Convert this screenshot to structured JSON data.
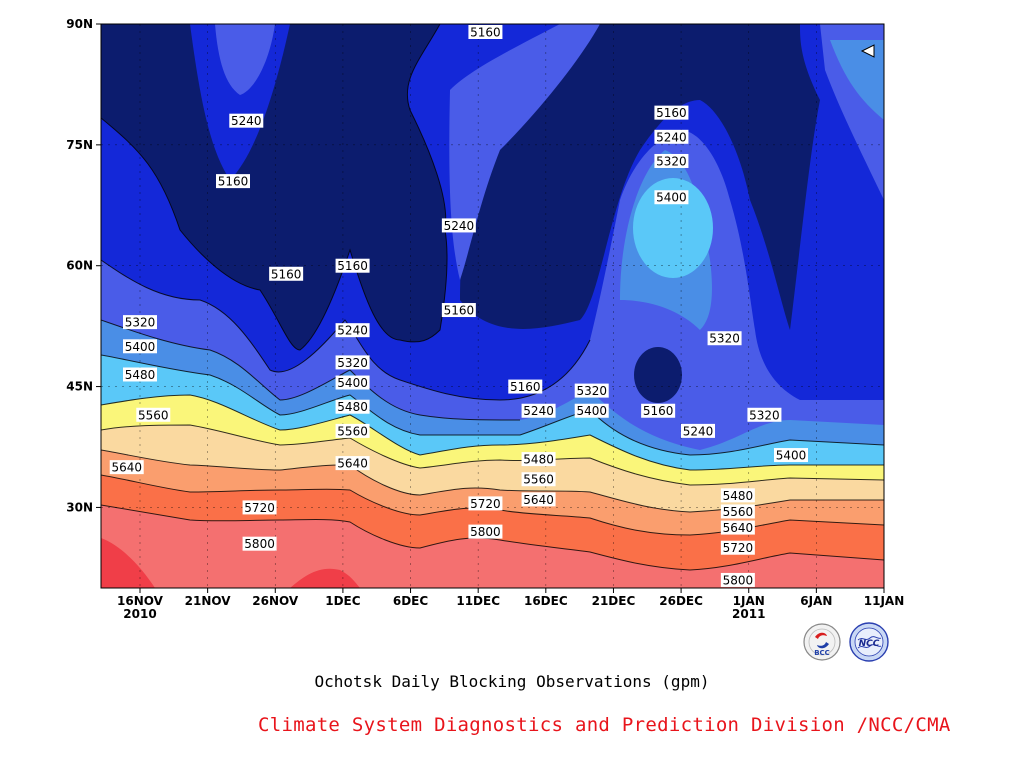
{
  "chart_data": {
    "type": "contour",
    "title": "Ochotsk Daily Blocking Observations (gpm)",
    "x_tick_labels": [
      "16NOV",
      "21NOV",
      "26NOV",
      "1DEC",
      "6DEC",
      "11DEC",
      "16DEC",
      "21DEC",
      "26DEC",
      "1JAN",
      "6JAN",
      "11JAN"
    ],
    "x_year_labels": [
      {
        "at": "16NOV",
        "text": "2010"
      },
      {
        "at": "1JAN",
        "text": "2011"
      }
    ],
    "y_tick_labels": [
      "30N",
      "45N",
      "60N",
      "75N",
      "90N"
    ],
    "ylim": [
      20,
      90
    ],
    "grid": true,
    "contour_levels": [
      5160,
      5240,
      5320,
      5400,
      5480,
      5560,
      5640,
      5720,
      5800
    ],
    "fill_colors": [
      "#0c1c6e",
      "#1428d8",
      "#4a5ce8",
      "#4a8ee6",
      "#5ac8f8",
      "#faf67a",
      "#fad9a0",
      "#fa9e6e",
      "#fa7048",
      "#f47070",
      "#f03e48"
    ],
    "contour_labels": [
      {
        "x": "24NOV",
        "y": 78,
        "text": "5240"
      },
      {
        "x": "23NOV",
        "y": 70.5,
        "text": "5160"
      },
      {
        "x": "27NOV",
        "y": 59,
        "text": "5160"
      },
      {
        "x": "2DEC",
        "y": 60,
        "text": "5160"
      },
      {
        "x": "2DEC",
        "y": 52,
        "text": "5240"
      },
      {
        "x": "2DEC",
        "y": 48,
        "text": "5320"
      },
      {
        "x": "2DEC",
        "y": 45.5,
        "text": "5400"
      },
      {
        "x": "2DEC",
        "y": 42.5,
        "text": "5480"
      },
      {
        "x": "2DEC",
        "y": 39.5,
        "text": "5560"
      },
      {
        "x": "2DEC",
        "y": 35.5,
        "text": "5640"
      },
      {
        "x": "12DEC",
        "y": 5160.0,
        "text": "5160"
      },
      {
        "x": "10DEC",
        "y": 65,
        "text": "5240"
      },
      {
        "x": "10DEC",
        "y": 54.5,
        "text": "5160"
      },
      {
        "x": "16NOV",
        "y": 53,
        "text": "5320"
      },
      {
        "x": "16NOV",
        "y": 50,
        "text": "5400"
      },
      {
        "x": "16NOV",
        "y": 46.5,
        "text": "5480"
      },
      {
        "x": "17NOV",
        "y": 41.5,
        "text": "5560"
      },
      {
        "x": "15NOV",
        "y": 35,
        "text": "5640"
      },
      {
        "x": "25NOV",
        "y": 30,
        "text": "5720"
      },
      {
        "x": "25NOV",
        "y": 25.5,
        "text": "5800"
      },
      {
        "x": "15DEC",
        "y": 45,
        "text": "5160"
      },
      {
        "x": "16DEC",
        "y": 42,
        "text": "5240"
      },
      {
        "x": "16DEC",
        "y": 36,
        "text": "5480"
      },
      {
        "x": "16DEC",
        "y": 33.5,
        "text": "5560"
      },
      {
        "x": "16DEC",
        "y": 31,
        "text": "5640"
      },
      {
        "x": "12DEC",
        "y": 30.5,
        "text": "5720"
      },
      {
        "x": "12DEC",
        "y": 27,
        "text": "5800"
      },
      {
        "x": "20DEC",
        "y": 44.5,
        "text": "5320"
      },
      {
        "x": "20DEC",
        "y": 42,
        "text": "5400"
      },
      {
        "x": "26DEC",
        "y": 79,
        "text": "5160"
      },
      {
        "x": "26DEC",
        "y": 76,
        "text": "5240"
      },
      {
        "x": "26DEC",
        "y": 73,
        "text": "5320"
      },
      {
        "x": "26DEC",
        "y": 68.5,
        "text": "5400"
      },
      {
        "x": "30DEC",
        "y": 51,
        "text": "5320"
      },
      {
        "x": "25DEC",
        "y": 42,
        "text": "5160"
      },
      {
        "x": "28DEC",
        "y": 39.5,
        "text": "5240"
      },
      {
        "x": "2JAN",
        "y": 41.5,
        "text": "5320"
      },
      {
        "x": "4JAN",
        "y": 36.5,
        "text": "5400"
      },
      {
        "x": "31DEC",
        "y": 31.5,
        "text": "5480"
      },
      {
        "x": "31DEC",
        "y": 29.5,
        "text": "5560"
      },
      {
        "x": "31DEC",
        "y": 27.5,
        "text": "5640"
      },
      {
        "x": "31DEC",
        "y": 25,
        "text": "5720"
      },
      {
        "x": "31DEC",
        "y": 21,
        "text": "5800"
      }
    ]
  },
  "caption": "Ochotsk Daily Blocking Observations (gpm)",
  "credit": "Climate System Diagnostics and Prediction Division /NCC/CMA",
  "logos": {
    "bcc": "BCC",
    "ncc": "NCC"
  }
}
